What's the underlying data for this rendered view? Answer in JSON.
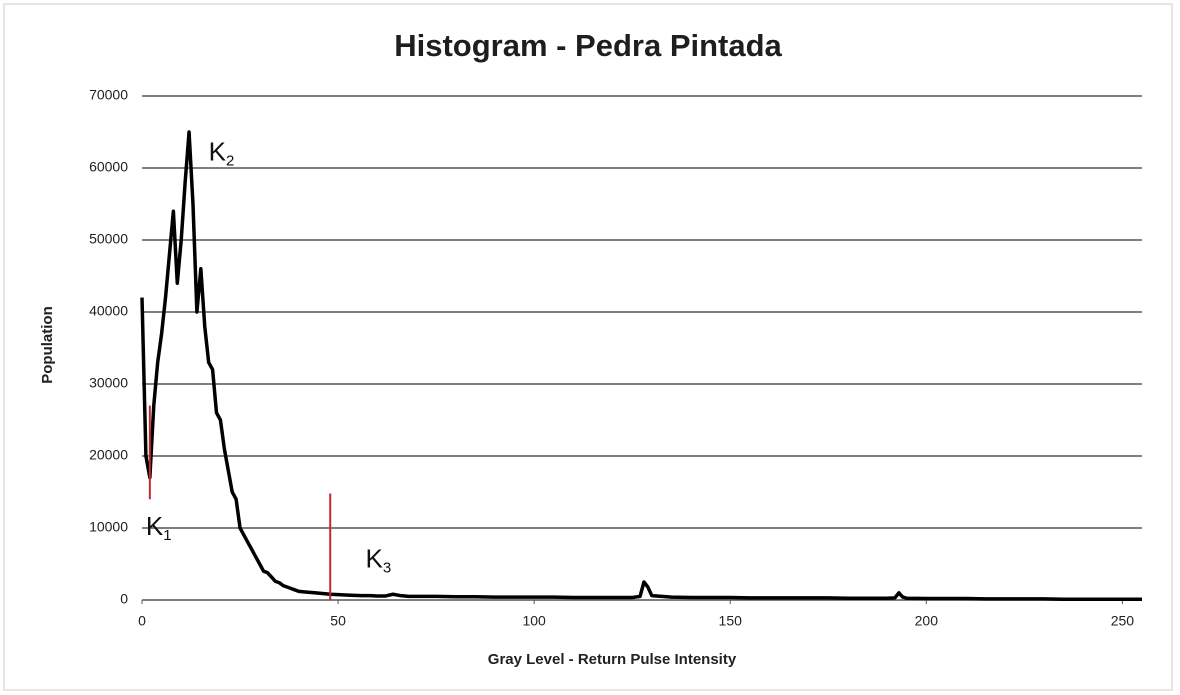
{
  "chart_data": {
    "type": "line",
    "title": "Histogram - Pedra Pintada",
    "xlabel": "Gray Level - Return Pulse Intensity",
    "ylabel": "Population",
    "x": [
      0,
      1,
      2,
      3,
      4,
      5,
      6,
      7,
      8,
      9,
      10,
      11,
      12,
      13,
      14,
      15,
      16,
      17,
      18,
      19,
      20,
      21,
      22,
      23,
      24,
      25,
      26,
      27,
      28,
      29,
      30,
      31,
      32,
      33,
      34,
      35,
      36,
      37,
      38,
      39,
      40,
      42,
      44,
      46,
      48,
      50,
      52,
      54,
      56,
      58,
      60,
      62,
      64,
      66,
      68,
      70,
      75,
      80,
      85,
      90,
      95,
      100,
      105,
      110,
      115,
      120,
      125,
      127,
      128,
      129,
      130,
      135,
      140,
      145,
      150,
      155,
      160,
      165,
      170,
      175,
      180,
      185,
      190,
      192,
      193,
      194,
      195,
      200,
      205,
      210,
      215,
      220,
      225,
      230,
      235,
      240,
      245,
      250,
      255
    ],
    "values": [
      42000,
      20000,
      17000,
      27000,
      33000,
      37000,
      42000,
      48000,
      54000,
      44000,
      50000,
      58000,
      65000,
      55000,
      40000,
      46000,
      38000,
      33000,
      32000,
      26000,
      25000,
      21000,
      18000,
      15000,
      14000,
      10000,
      9000,
      8000,
      7000,
      6000,
      5000,
      4000,
      3800,
      3200,
      2600,
      2400,
      2000,
      1800,
      1600,
      1400,
      1200,
      1100,
      1000,
      900,
      800,
      750,
      700,
      650,
      600,
      600,
      550,
      550,
      800,
      600,
      500,
      500,
      500,
      450,
      450,
      400,
      400,
      400,
      400,
      350,
      350,
      350,
      350,
      500,
      2500,
      1800,
      600,
      400,
      350,
      350,
      350,
      300,
      300,
      300,
      300,
      300,
      250,
      250,
      250,
      300,
      1000,
      400,
      250,
      200,
      200,
      200,
      150,
      150,
      150,
      150,
      100,
      100,
      100,
      100,
      100
    ],
    "color": "#000000",
    "xlim": [
      0,
      255
    ],
    "xticks": [
      0,
      50,
      100,
      150,
      200,
      250
    ],
    "ylim": [
      0,
      70000
    ],
    "yticks": [
      0,
      10000,
      20000,
      30000,
      40000,
      50000,
      60000,
      70000
    ],
    "grid": true,
    "thresholds": [
      {
        "x": 2,
        "y": [
          14000,
          27000
        ],
        "color": "#c0292f"
      },
      {
        "x": 48,
        "y": [
          0,
          14800
        ],
        "color": "#c0292f"
      }
    ],
    "annotations": [
      {
        "text": "K",
        "sub": "1",
        "x": 1,
        "y": 10000
      },
      {
        "text": "K",
        "sub": "2",
        "x": 17,
        "y": 62000
      },
      {
        "text": "K",
        "sub": "3",
        "x": 57,
        "y": 5500
      }
    ]
  }
}
